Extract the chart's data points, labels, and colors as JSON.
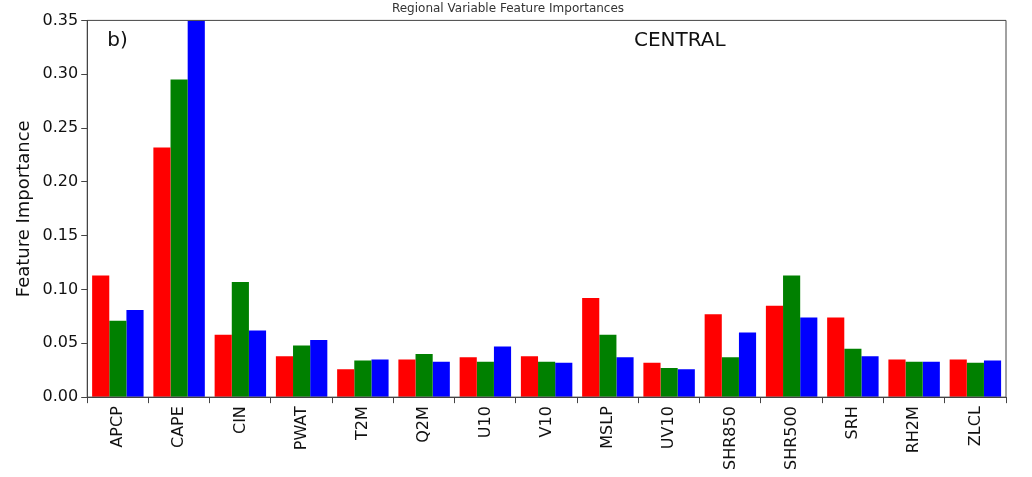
{
  "chart_data": {
    "type": "bar",
    "title": "Regional Variable Feature Importances",
    "ylabel": "Feature Importance",
    "annotations": [
      "b)",
      "CENTRAL"
    ],
    "categories": [
      "APCP",
      "CAPE",
      "CIN",
      "PWAT",
      "T2M",
      "Q2M",
      "U10",
      "V10",
      "MSLP",
      "UV10",
      "SHR850",
      "SHR500",
      "SRH",
      "RH2M",
      "ZLCL"
    ],
    "series": [
      {
        "color": "#ff0000",
        "values": [
          0.113,
          0.232,
          0.058,
          0.038,
          0.026,
          0.035,
          0.037,
          0.038,
          0.092,
          0.032,
          0.077,
          0.085,
          0.074,
          0.035,
          0.035
        ]
      },
      {
        "color": "#008000",
        "values": [
          0.071,
          0.295,
          0.107,
          0.048,
          0.034,
          0.04,
          0.033,
          0.033,
          0.058,
          0.027,
          0.037,
          0.113,
          0.045,
          0.033,
          0.032
        ]
      },
      {
        "color": "#0000ff",
        "values": [
          0.081,
          0.35,
          0.062,
          0.053,
          0.035,
          0.033,
          0.047,
          0.032,
          0.037,
          0.026,
          0.06,
          0.074,
          0.038,
          0.033,
          0.034
        ]
      }
    ],
    "ylim": [
      0,
      0.35
    ],
    "yticks": [
      {
        "value": 0,
        "label": "0.00"
      },
      {
        "value": 0.05,
        "label": "0.05"
      },
      {
        "value": 0.1,
        "label": "0.10"
      },
      {
        "value": 0.15,
        "label": "0.15"
      },
      {
        "value": 0.2,
        "label": "0.20"
      },
      {
        "value": 0.25,
        "label": "0.25"
      },
      {
        "value": 0.3,
        "label": "0.30"
      },
      {
        "value": 0.35,
        "label": "0.35"
      }
    ],
    "grid": false,
    "legend": false
  }
}
